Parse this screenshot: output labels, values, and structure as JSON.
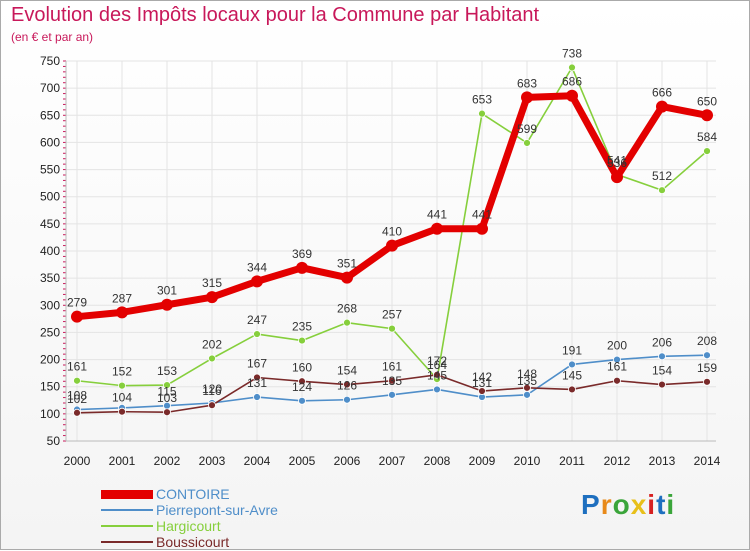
{
  "header": {
    "title": "Evolution des Impôts locaux pour la Commune par Habitant",
    "subtitle": "(en € et par an)"
  },
  "logo": {
    "chars": [
      "P",
      "r",
      "o",
      "x",
      "i",
      "t",
      "i"
    ]
  },
  "colors": {
    "title": "#c8185a",
    "grid": "#e4e4e4",
    "axis_tick": "#c8185a",
    "logo": [
      "#1e6fbf",
      "#e88a1a",
      "#3aa53a",
      "#e8c01a",
      "#d62020",
      "#1e6fbf",
      "#3aa53a"
    ]
  },
  "chart_data": {
    "type": "line",
    "title": "Evolution des Impôts locaux pour la Commune par Habitant",
    "subtitle": "(en € et par an)",
    "xlabel": "",
    "ylabel": "",
    "x": [
      "2000",
      "2001",
      "2002",
      "2003",
      "2004",
      "2005",
      "2006",
      "2007",
      "2008",
      "2009",
      "2010",
      "2011",
      "2012",
      "2013",
      "2014"
    ],
    "ylim": [
      50,
      750
    ],
    "yticks": [
      50,
      100,
      150,
      200,
      250,
      300,
      350,
      400,
      450,
      500,
      550,
      600,
      650,
      700,
      750
    ],
    "grid": true,
    "legend_position": "bottom-left",
    "series": [
      {
        "name": "CONTOIRE",
        "color": "#e30000",
        "highlight": true,
        "values": [
          279,
          287,
          301,
          315,
          344,
          369,
          351,
          410,
          441,
          441,
          683,
          686,
          536,
          666,
          650
        ],
        "labels": [
          "279",
          "287",
          "301",
          "315",
          "344",
          "369",
          "351",
          "410",
          "441",
          "441",
          "683",
          "686",
          "536",
          "666",
          "650"
        ]
      },
      {
        "name": "Pierrepont-sur-Avre",
        "color": "#4f8ec9",
        "values": [
          108,
          111,
          115,
          120,
          131,
          124,
          126,
          135,
          145,
          131,
          135,
          191,
          200,
          206,
          208
        ],
        "labels": [
          "108",
          "",
          "115",
          "120",
          "131",
          "124",
          "126",
          "135",
          "145",
          "131",
          "135",
          "191",
          "200",
          "206",
          "208"
        ]
      },
      {
        "name": "Hargicourt",
        "color": "#86cf3c",
        "values": [
          161,
          152,
          153,
          202,
          247,
          235,
          268,
          257,
          164,
          653,
          599,
          738,
          541,
          512,
          584
        ],
        "labels": [
          "161",
          "152",
          "153",
          "202",
          "247",
          "235",
          "268",
          "257",
          "164",
          "653",
          "599",
          "738",
          "541",
          "512",
          "584"
        ]
      },
      {
        "name": "Boussicourt",
        "color": "#7a2a2a",
        "values": [
          102,
          104,
          103,
          116,
          167,
          160,
          154,
          161,
          172,
          142,
          148,
          145,
          161,
          154,
          159
        ],
        "labels": [
          "102",
          "104",
          "103",
          "116",
          "167",
          "160",
          "154",
          "161",
          "172",
          "142",
          "148",
          "145",
          "161",
          "154",
          "159"
        ]
      }
    ]
  }
}
